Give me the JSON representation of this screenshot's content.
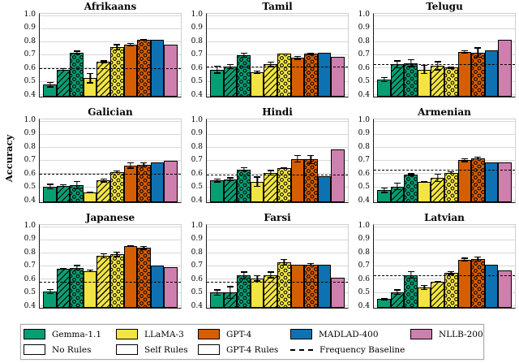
{
  "figure": {
    "ylabel": "Accuracy",
    "legend": {
      "models": [
        {
          "label": "Gemma-1.1",
          "color": "#089E73"
        },
        {
          "label": "LLaMA-3",
          "color": "#F2E442"
        },
        {
          "label": "GPT-4",
          "color": "#D55E00"
        },
        {
          "label": "MADLAD-400",
          "color": "#0E72B2"
        },
        {
          "label": "NLLB-200",
          "color": "#CE7FAE"
        }
      ],
      "patterns": [
        {
          "label": "No Rules",
          "pattern": "none"
        },
        {
          "label": "Self Rules",
          "pattern": "hatch"
        },
        {
          "label": "GPT-4 Rules",
          "pattern": "dots"
        },
        {
          "label": "Frequency Baseline",
          "pattern": "dashed"
        }
      ]
    }
  },
  "chart_data": {
    "type": "bar",
    "title": "",
    "xlabel": "",
    "ylabel": "Accuracy",
    "ylim": [
      0.4,
      1.0
    ],
    "yticks": [
      0.4,
      0.5,
      0.6,
      0.7,
      0.8,
      0.9,
      1.0
    ],
    "grid": true,
    "legend_position": "bottom",
    "baseline_label": "Frequency Baseline",
    "bar_labels": [
      "Gemma-1.1 No Rules",
      "Gemma-1.1 Self Rules",
      "Gemma-1.1 GPT-4 Rules",
      "LLaMA-3 No Rules",
      "LLaMA-3 Self Rules",
      "LLaMA-3 GPT-4 Rules",
      "GPT-4 No Rules",
      "GPT-4 GPT-4 Rules",
      "MADLAD-400",
      "NLLB-200"
    ],
    "bar_styles": [
      {
        "color": "#089E73",
        "pattern": "none"
      },
      {
        "color": "#089E73",
        "pattern": "hatch"
      },
      {
        "color": "#089E73",
        "pattern": "dots"
      },
      {
        "color": "#F2E442",
        "pattern": "none"
      },
      {
        "color": "#F2E442",
        "pattern": "hatch"
      },
      {
        "color": "#F2E442",
        "pattern": "dots"
      },
      {
        "color": "#D55E00",
        "pattern": "none"
      },
      {
        "color": "#D55E00",
        "pattern": "dots"
      },
      {
        "color": "#0E72B2",
        "pattern": "none"
      },
      {
        "color": "#CE7FAE",
        "pattern": "none"
      }
    ],
    "subplots": [
      {
        "title": "Afrikaans",
        "baseline": 0.595,
        "values": [
          0.47,
          0.585,
          0.715,
          0.52,
          0.645,
          0.755,
          0.775,
          0.815,
          0.81,
          0.775
        ],
        "errors": [
          0.02,
          0.01,
          0.015,
          0.04,
          0.01,
          0.025,
          0.015,
          0.005,
          0,
          0
        ]
      },
      {
        "title": "Tamil",
        "baseline": 0.61,
        "values": [
          0.585,
          0.61,
          0.695,
          0.565,
          0.625,
          0.705,
          0.675,
          0.705,
          0.715,
          0.68
        ],
        "errors": [
          0.03,
          0.02,
          0.02,
          0.015,
          0.02,
          0.005,
          0.015,
          0.01,
          0,
          0
        ]
      },
      {
        "title": "Telugu",
        "baseline": 0.625,
        "values": [
          0.51,
          0.625,
          0.635,
          0.585,
          0.615,
          0.6,
          0.72,
          0.715,
          0.735,
          0.81
        ],
        "errors": [
          0.02,
          0.03,
          0.03,
          0.035,
          0.035,
          0.01,
          0.015,
          0.04,
          0,
          0
        ]
      },
      {
        "title": "Galician",
        "baseline": 0.595,
        "values": [
          0.5,
          0.505,
          0.51,
          0.455,
          0.545,
          0.61,
          0.66,
          0.665,
          0.685,
          0.695
        ],
        "errors": [
          0.02,
          0.01,
          0.03,
          0.005,
          0.015,
          0.01,
          0.025,
          0.02,
          0,
          0
        ]
      },
      {
        "title": "Hindi",
        "baseline": 0.59,
        "values": [
          0.545,
          0.555,
          0.63,
          0.535,
          0.605,
          0.64,
          0.71,
          0.705,
          0.575,
          0.78
        ],
        "errors": [
          0.015,
          0.015,
          0.015,
          0.04,
          0.02,
          0.005,
          0.03,
          0.035,
          0,
          0
        ]
      },
      {
        "title": "Armenian",
        "baseline": 0.625,
        "values": [
          0.47,
          0.5,
          0.59,
          0.535,
          0.565,
          0.605,
          0.7,
          0.715,
          0.685,
          0.685
        ],
        "errors": [
          0.02,
          0.03,
          0.01,
          0.005,
          0.03,
          0.01,
          0.015,
          0.01,
          0,
          0
        ]
      },
      {
        "title": "Japanese",
        "baseline": 0.58,
        "values": [
          0.505,
          0.675,
          0.685,
          0.66,
          0.775,
          0.785,
          0.85,
          0.835,
          0.7,
          0.69
        ],
        "errors": [
          0.02,
          0.005,
          0.02,
          0.01,
          0.02,
          0.02,
          0.005,
          0.015,
          0,
          0
        ]
      },
      {
        "title": "Farsi",
        "baseline": 0.58,
        "values": [
          0.495,
          0.495,
          0.625,
          0.605,
          0.63,
          0.725,
          0.705,
          0.71,
          0.705,
          0.61
        ],
        "errors": [
          0.025,
          0.05,
          0.03,
          0.025,
          0.025,
          0.025,
          0.005,
          0.01,
          0,
          0
        ]
      },
      {
        "title": "Latvian",
        "baseline": 0.63,
        "values": [
          0.445,
          0.5,
          0.63,
          0.535,
          0.58,
          0.645,
          0.745,
          0.75,
          0.71,
          0.665
        ],
        "errors": [
          0.01,
          0.02,
          0.03,
          0.02,
          0.005,
          0.015,
          0.015,
          0.02,
          0,
          0
        ]
      }
    ]
  }
}
